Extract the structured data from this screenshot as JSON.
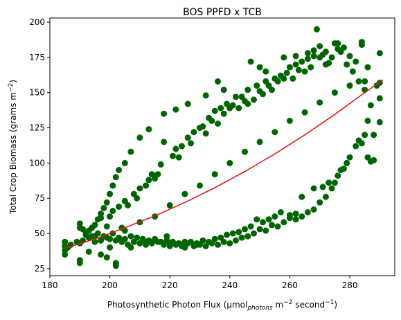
{
  "chart_data": {
    "type": "scatter",
    "title": "BOS PPFD x TCB",
    "xlabel": {
      "prefix": "Photosynthetic Photon Flux (μmol",
      "sub": "photons",
      "mid": " m",
      "sup1": "−2",
      "mid2": " second",
      "sup2": "−1",
      "suffix": ")"
    },
    "ylabel": {
      "prefix": "Total Crop Biomass (grams m",
      "sup": "−2",
      "suffix": ")"
    },
    "xlim": [
      180,
      295
    ],
    "ylim": [
      20,
      203
    ],
    "xticks": [
      180,
      200,
      220,
      240,
      260,
      280
    ],
    "yticks": [
      25,
      50,
      75,
      100,
      125,
      150,
      175,
      200
    ],
    "colors": {
      "points": "#006400",
      "fit": "#e8191b"
    },
    "series": [
      {
        "kind": "scatter",
        "points": [
          [
            185,
            35
          ],
          [
            185,
            38
          ],
          [
            185,
            41
          ],
          [
            185,
            44
          ],
          [
            190,
            29
          ],
          [
            190,
            31
          ],
          [
            190,
            43
          ],
          [
            190,
            54
          ],
          [
            190,
            57
          ],
          [
            191,
            53
          ],
          [
            192,
            49
          ],
          [
            193,
            37
          ],
          [
            194,
            48
          ],
          [
            195,
            44
          ],
          [
            196,
            50
          ],
          [
            197,
            35
          ],
          [
            197,
            61
          ],
          [
            198,
            48
          ],
          [
            199,
            33
          ],
          [
            199,
            55
          ],
          [
            200,
            40
          ],
          [
            200,
            62
          ],
          [
            201,
            66
          ],
          [
            202,
            27
          ],
          [
            202,
            29
          ],
          [
            203,
            69
          ],
          [
            204,
            54
          ],
          [
            205,
            73
          ],
          [
            206,
            70
          ],
          [
            207,
            40
          ],
          [
            208,
            78
          ],
          [
            209,
            75
          ],
          [
            210,
            82
          ],
          [
            211,
            45
          ],
          [
            212,
            84
          ],
          [
            213,
            88
          ],
          [
            214,
            92
          ],
          [
            215,
            89
          ],
          [
            216,
            92
          ],
          [
            217,
            99
          ],
          [
            218,
            115
          ],
          [
            219,
            48
          ],
          [
            220,
            42
          ],
          [
            221,
            105
          ],
          [
            222,
            110
          ],
          [
            223,
            104
          ],
          [
            224,
            112
          ],
          [
            225,
            40
          ],
          [
            226,
            118
          ],
          [
            227,
            114
          ],
          [
            228,
            122
          ],
          [
            229,
            42
          ],
          [
            230,
            125
          ],
          [
            231,
            126
          ],
          [
            232,
            121
          ],
          [
            233,
            132
          ],
          [
            234,
            130
          ],
          [
            235,
            137
          ],
          [
            236,
            128
          ],
          [
            237,
            139
          ],
          [
            238,
            135
          ],
          [
            239,
            142
          ],
          [
            240,
            139
          ],
          [
            241,
            141
          ],
          [
            242,
            147
          ],
          [
            243,
            139
          ],
          [
            244,
            147
          ],
          [
            245,
            144
          ],
          [
            246,
            142
          ],
          [
            246,
            152
          ],
          [
            248,
            145
          ],
          [
            249,
            155
          ],
          [
            250,
            151
          ],
          [
            251,
            149
          ],
          [
            252,
            158
          ],
          [
            253,
            155
          ],
          [
            254,
            152
          ],
          [
            255,
            160
          ],
          [
            256,
            158
          ],
          [
            257,
            162
          ],
          [
            258,
            160
          ],
          [
            259,
            164
          ],
          [
            260,
            168
          ],
          [
            261,
            160
          ],
          [
            262,
            170
          ],
          [
            263,
            166
          ],
          [
            264,
            172
          ],
          [
            265,
            165
          ],
          [
            266,
            174
          ],
          [
            267,
            168
          ],
          [
            268,
            176
          ],
          [
            269,
            195
          ],
          [
            270,
            175
          ],
          [
            271,
            177
          ],
          [
            272,
            170
          ],
          [
            273,
            171
          ],
          [
            274,
            175
          ],
          [
            275,
            185
          ],
          [
            276,
            181
          ],
          [
            278,
            182
          ],
          [
            280,
            176
          ],
          [
            282,
            172
          ],
          [
            284,
            184
          ],
          [
            284,
            186
          ],
          [
            286,
            168
          ],
          [
            279,
            170
          ],
          [
            281,
            165
          ],
          [
            283,
            158
          ],
          [
            285,
            152
          ],
          [
            287,
            141
          ],
          [
            285,
            120
          ],
          [
            286,
            130
          ],
          [
            284,
            114
          ],
          [
            283,
            116
          ],
          [
            282,
            112
          ],
          [
            280,
            104
          ],
          [
            279,
            100
          ],
          [
            278,
            96
          ],
          [
            277,
            95
          ],
          [
            276,
            91
          ],
          [
            275,
            86
          ],
          [
            274,
            82
          ],
          [
            273,
            86
          ],
          [
            272,
            76
          ],
          [
            270,
            72
          ],
          [
            268,
            67
          ],
          [
            266,
            65
          ],
          [
            264,
            62
          ],
          [
            262,
            60
          ],
          [
            260,
            63
          ],
          [
            258,
            58
          ],
          [
            256,
            55
          ],
          [
            254,
            56
          ],
          [
            252,
            52
          ],
          [
            250,
            53
          ],
          [
            248,
            50
          ],
          [
            246,
            48
          ],
          [
            244,
            47
          ],
          [
            242,
            45
          ],
          [
            240,
            43
          ],
          [
            238,
            44
          ],
          [
            236,
            42
          ],
          [
            234,
            43
          ],
          [
            232,
            41
          ],
          [
            230,
            42
          ],
          [
            228,
            41
          ],
          [
            226,
            43
          ],
          [
            224,
            41
          ],
          [
            222,
            42
          ],
          [
            220,
            41
          ],
          [
            218,
            42
          ],
          [
            216,
            44
          ],
          [
            214,
            43
          ],
          [
            212,
            42
          ],
          [
            210,
            43
          ],
          [
            208,
            44
          ],
          [
            206,
            42
          ],
          [
            204,
            44
          ],
          [
            202,
            45
          ],
          [
            290,
            178
          ],
          [
            290,
            157
          ],
          [
            290,
            146
          ],
          [
            290,
            129
          ],
          [
            289,
            155
          ],
          [
            288,
            120
          ],
          [
            288,
            102
          ],
          [
            287,
            101
          ],
          [
            286,
            104
          ],
          [
            271,
            83
          ],
          [
            268,
            82
          ],
          [
            264,
            76
          ],
          [
            262,
            64
          ],
          [
            260,
            61
          ],
          [
            257,
            65
          ],
          [
            255,
            62
          ],
          [
            253,
            60
          ],
          [
            251,
            58
          ],
          [
            249,
            60
          ],
          [
            247,
            55
          ],
          [
            245,
            53
          ],
          [
            243,
            51
          ],
          [
            241,
            50
          ],
          [
            239,
            49
          ],
          [
            237,
            47
          ],
          [
            235,
            46
          ],
          [
            233,
            44
          ],
          [
            231,
            45
          ],
          [
            229,
            43
          ],
          [
            227,
            44
          ],
          [
            225,
            44
          ],
          [
            223,
            43
          ],
          [
            221,
            44
          ],
          [
            219,
            45
          ],
          [
            217,
            44
          ],
          [
            215,
            46
          ],
          [
            213,
            45
          ],
          [
            211,
            46
          ],
          [
            209,
            47
          ],
          [
            207,
            48
          ],
          [
            205,
            46
          ],
          [
            203,
            47
          ],
          [
            201,
            50
          ],
          [
            199,
            47
          ],
          [
            197,
            45
          ],
          [
            195,
            48
          ],
          [
            193,
            47
          ],
          [
            191,
            45
          ],
          [
            189,
            44
          ],
          [
            187,
            42
          ],
          [
            186,
            40
          ],
          [
            200,
            46
          ],
          [
            205,
            52
          ],
          [
            210,
            58
          ],
          [
            215,
            62
          ],
          [
            220,
            70
          ],
          [
            225,
            78
          ],
          [
            230,
            84
          ],
          [
            235,
            92
          ],
          [
            240,
            100
          ],
          [
            245,
            108
          ],
          [
            250,
            115
          ],
          [
            255,
            122
          ],
          [
            260,
            130
          ],
          [
            265,
            136
          ],
          [
            270,
            143
          ],
          [
            275,
            150
          ],
          [
            280,
            155
          ],
          [
            285,
            158
          ],
          [
            258,
            175
          ],
          [
            262,
            176
          ],
          [
            266,
            178
          ],
          [
            268,
            180
          ],
          [
            270,
            183
          ],
          [
            272,
            179
          ],
          [
            276,
            185
          ],
          [
            277,
            179
          ],
          [
            247,
            172
          ],
          [
            250,
            168
          ],
          [
            252,
            165
          ],
          [
            236,
            158
          ],
          [
            238,
            152
          ],
          [
            232,
            148
          ],
          [
            226,
            142
          ],
          [
            222,
            138
          ],
          [
            218,
            135
          ],
          [
            213,
            124
          ],
          [
            210,
            118
          ],
          [
            207,
            108
          ],
          [
            205,
            100
          ],
          [
            203,
            95
          ],
          [
            202,
            90
          ],
          [
            201,
            84
          ],
          [
            200,
            78
          ],
          [
            199,
            72
          ],
          [
            198,
            68
          ],
          [
            197,
            64
          ],
          [
            196,
            60
          ],
          [
            195,
            56
          ],
          [
            194,
            54
          ],
          [
            193,
            52
          ],
          [
            192,
            50
          ]
        ]
      },
      {
        "kind": "fit",
        "x": [
          185,
          195,
          205,
          215,
          225,
          235,
          245,
          255,
          265,
          275,
          285,
          291
        ],
        "y": [
          39.5,
          46,
          54,
          62.5,
          72,
          82.5,
          94,
          106.5,
          120,
          134.5,
          150,
          159
        ]
      }
    ]
  }
}
